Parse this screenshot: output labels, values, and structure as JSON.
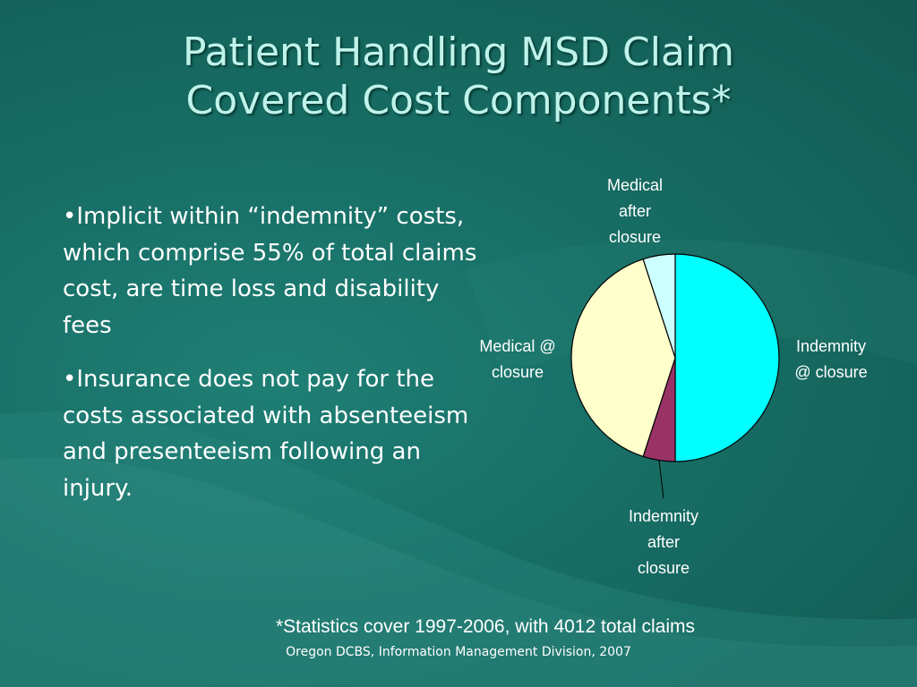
{
  "slide": {
    "title_line1": "Patient Handling MSD Claim",
    "title_line2": "Covered Cost Components*",
    "bullets": [
      "•Implicit within “indemnity” costs, which comprise 55% of total claims cost, are time loss and disability fees",
      "•Insurance does not pay for the costs associated with absenteeism and presenteeism following an injury."
    ],
    "footnote": "*Statistics cover 1997-2006, with 4012 total claims",
    "source": "Oregon DCBS, Information Management Division, 2007"
  },
  "chart_data": {
    "type": "pie",
    "slices": [
      {
        "label_lines": [
          "Indemnity",
          "@ closure"
        ],
        "value": 50,
        "color": "#00ffff"
      },
      {
        "label_lines": [
          "Indemnity",
          "after",
          "closure"
        ],
        "value": 5,
        "color": "#993366"
      },
      {
        "label_lines": [
          "Medical @",
          "closure"
        ],
        "value": 40,
        "color": "#ffffcc"
      },
      {
        "label_lines": [
          "Medical",
          "after",
          "closure"
        ],
        "value": 5,
        "color": "#ccffff"
      }
    ]
  }
}
